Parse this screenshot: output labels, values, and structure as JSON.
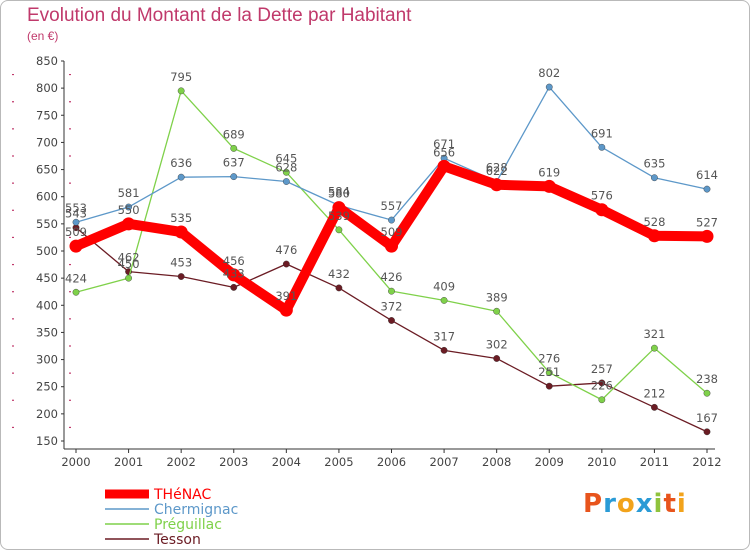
{
  "header": {
    "title": "Evolution du Montant de la Dette par Habitant",
    "subtitle": "(en €)"
  },
  "brand": {
    "logo_text": "Proxiti",
    "logo_colors": [
      "#e8541c",
      "#2a9bd6",
      "#f2a31b",
      "#2a9bd6",
      "#8fc33d",
      "#e8541c",
      "#f2a31b"
    ]
  },
  "chart_data": {
    "type": "line",
    "title": "Evolution du Montant de la Dette par Habitant",
    "subtitle": "(en €)",
    "xlabel": "",
    "ylabel": "",
    "x": [
      "2000",
      "2001",
      "2002",
      "2003",
      "2004",
      "2005",
      "2006",
      "2007",
      "2008",
      "2009",
      "2010",
      "2011",
      "2012"
    ],
    "ylim": [
      150,
      850
    ],
    "yticks": [
      150,
      200,
      250,
      300,
      350,
      400,
      450,
      500,
      550,
      600,
      650,
      700,
      750,
      800,
      850
    ],
    "grid": false,
    "legend_position": "bottom-left",
    "series": [
      {
        "name": "Tesson",
        "color": "#6b1c24",
        "values": [
          543,
          462,
          453,
          433,
          476,
          432,
          372,
          317,
          302,
          251,
          257,
          212,
          167
        ]
      },
      {
        "name": "Préguillac",
        "color": "#7fd14a",
        "values": [
          424,
          450,
          795,
          689,
          645,
          539,
          426,
          409,
          389,
          276,
          226,
          321,
          238
        ]
      },
      {
        "name": "Chermignac",
        "color": "#5d98c9",
        "values": [
          553,
          581,
          636,
          637,
          628,
          584,
          557,
          671,
          628,
          802,
          691,
          635,
          614
        ]
      },
      {
        "name": "THéNAC",
        "color": "#ff0000",
        "values": [
          509,
          550,
          535,
          456,
          391,
          580,
          509,
          656,
          622,
          619,
          576,
          528,
          527
        ]
      }
    ],
    "legend_order": [
      "THéNAC",
      "Chermignac",
      "Préguillac",
      "Tesson"
    ]
  }
}
